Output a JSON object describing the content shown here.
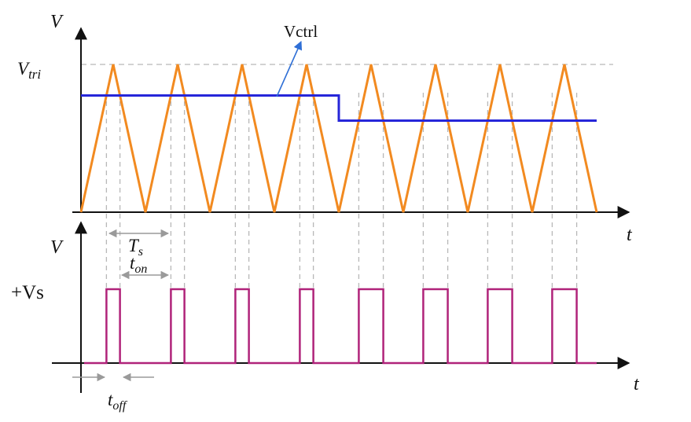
{
  "labels": {
    "v_top": "V",
    "v_bottom": "V",
    "t_top": "t",
    "t_bottom": "t",
    "vtri": "V",
    "vtri_sub": "tri",
    "vctrl": "Vctrl",
    "ts": "T",
    "ts_sub": "s",
    "ton": "t",
    "ton_sub": "on",
    "toff": "t",
    "toff_sub": "off",
    "vs": "+Vs"
  },
  "colors": {
    "triangle": "#f28a20",
    "control": "#2626d9",
    "pwm": "#b0237a",
    "axes": "#111111",
    "guides": "#b8b8b8",
    "annotation_arrow": "#2f6fd6"
  },
  "chart_data": {
    "type": "line",
    "carrier_periods": 8,
    "triangle_peak": 1.0,
    "control_levels": [
      {
        "from_period": 0,
        "to_period": 4,
        "value": 0.79
      },
      {
        "from_period": 4,
        "to_period": 8,
        "value": 0.62
      }
    ]
  }
}
